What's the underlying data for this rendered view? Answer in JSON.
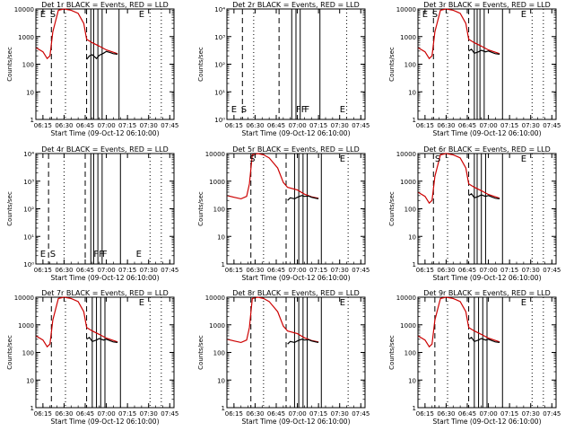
{
  "figure": {
    "background": "#ffffff",
    "event_color": "#000000",
    "lld_color": "#cc0000"
  },
  "shared": {
    "x_tick_labels": [
      "06:15",
      "06:30",
      "06:45",
      "07:00",
      "07:15",
      "07:30",
      "07:45"
    ],
    "y_tick_labels_linear": [
      "1",
      "10",
      "100",
      "1000",
      "10000"
    ],
    "y_tick_labels_exp": [
      "10⁰",
      "10¹",
      "10²",
      "10³",
      "10⁴"
    ],
    "xlabel": "Start Time (09-Oct-12 06:10:00)",
    "ylabel": "Counts/sec"
  },
  "chart_data": [
    {
      "type": "line",
      "title": "Det 1r BLACK = Events, RED = LLD",
      "y_scale": "log",
      "ylim": [
        1,
        10000
      ],
      "xlim": [
        "06:10",
        "07:48"
      ],
      "y_tick_style": "linear",
      "markers": [
        {
          "label": "E",
          "x": "06:13"
        },
        {
          "label": "S",
          "x": "06:20"
        },
        {
          "label": "E",
          "x": "07:23"
        }
      ],
      "dashed_lines": [
        "06:21",
        "06:46"
      ],
      "dotted_lines": [
        "06:31",
        "07:31",
        "07:39"
      ],
      "solid_lines": [
        "06:49",
        "06:51",
        "06:54",
        "06:57",
        "07:09"
      ],
      "series": [
        {
          "name": "LLD",
          "color": "#cc0000",
          "x": [
            "06:10",
            "06:15",
            "06:18",
            "06:20",
            "06:22",
            "06:26",
            "06:30",
            "06:35",
            "06:40",
            "06:44",
            "06:46",
            "06:50",
            "06:55",
            "07:00",
            "07:05",
            "07:08"
          ],
          "values": [
            400,
            280,
            160,
            200,
            1500,
            9000,
            10000,
            9000,
            7000,
            3000,
            800,
            600,
            450,
            330,
            270,
            240
          ]
        },
        {
          "name": "Events",
          "color": "#000000",
          "x": [
            "06:46",
            "06:48",
            "06:50",
            "06:53",
            "06:55",
            "06:58",
            "07:00",
            "07:03",
            "07:05",
            "07:08"
          ],
          "values": [
            150,
            200,
            220,
            160,
            210,
            250,
            290,
            260,
            240,
            230
          ]
        }
      ]
    },
    {
      "type": "line",
      "title": "Det 2r BLACK = Events, RED = LLD",
      "y_scale": "log",
      "ylim": [
        1,
        10000
      ],
      "xlim": [
        "06:10",
        "07:48"
      ],
      "y_tick_style": "exp",
      "markers": [
        {
          "label": "E",
          "x": "06:13"
        },
        {
          "label": "S",
          "x": "06:20"
        },
        {
          "label": "FF",
          "x": "06:59"
        },
        {
          "label": "F",
          "x": "07:05"
        },
        {
          "label": "E",
          "x": "07:30"
        }
      ],
      "dashed_lines": [
        "06:21",
        "06:47"
      ],
      "dotted_lines": [
        "06:29",
        "07:35"
      ],
      "solid_lines": [
        "06:56",
        "06:59",
        "07:02",
        "07:16"
      ],
      "series": []
    },
    {
      "type": "line",
      "title": "Det 3r BLACK = Events, RED = LLD",
      "y_scale": "log",
      "ylim": [
        1,
        10000
      ],
      "xlim": [
        "06:10",
        "07:48"
      ],
      "y_tick_style": "linear",
      "markers": [
        {
          "label": "E",
          "x": "06:13"
        },
        {
          "label": "S",
          "x": "06:20"
        },
        {
          "label": "E",
          "x": "07:23"
        }
      ],
      "dashed_lines": [
        "06:21",
        "06:46"
      ],
      "dotted_lines": [
        "06:31",
        "07:31",
        "07:39"
      ],
      "solid_lines": [
        "06:50",
        "06:52",
        "06:54",
        "06:57",
        "07:10"
      ],
      "series": [
        {
          "name": "LLD",
          "color": "#cc0000",
          "x": [
            "06:10",
            "06:15",
            "06:18",
            "06:20",
            "06:22",
            "06:26",
            "06:30",
            "06:35",
            "06:40",
            "06:44",
            "06:46",
            "06:50",
            "06:55",
            "07:00",
            "07:05",
            "07:08"
          ],
          "values": [
            400,
            280,
            160,
            200,
            1500,
            9000,
            10000,
            9000,
            7000,
            3000,
            800,
            600,
            450,
            330,
            270,
            240
          ]
        },
        {
          "name": "Events",
          "color": "#000000",
          "x": [
            "06:46",
            "06:48",
            "06:50",
            "06:53",
            "06:55",
            "06:58",
            "07:00",
            "07:03",
            "07:05",
            "07:08"
          ],
          "values": [
            300,
            350,
            250,
            280,
            320,
            280,
            300,
            260,
            240,
            230
          ]
        }
      ]
    },
    {
      "type": "line",
      "title": "Det 4r BLACK = Events, RED = LLD",
      "y_scale": "log",
      "ylim": [
        1,
        10000
      ],
      "xlim": [
        "06:10",
        "07:48"
      ],
      "y_tick_style": "exp",
      "markers": [
        {
          "label": "E",
          "x": "06:13"
        },
        {
          "label": "S",
          "x": "06:20"
        },
        {
          "label": "FF",
          "x": "06:51"
        },
        {
          "label": "F",
          "x": "06:57"
        },
        {
          "label": "E",
          "x": "07:21"
        }
      ],
      "dashed_lines": [
        "06:19",
        "06:45"
      ],
      "dotted_lines": [
        "06:30",
        "07:31",
        "07:39"
      ],
      "solid_lines": [
        "06:49",
        "06:51",
        "06:54",
        "06:57",
        "07:10"
      ],
      "series": []
    },
    {
      "type": "line",
      "title": "Det 5r BLACK = Events, RED = LLD",
      "y_scale": "log",
      "ylim": [
        1,
        10000
      ],
      "xlim": [
        "06:10",
        "07:48"
      ],
      "y_tick_style": "linear",
      "markers": [
        {
          "label": "S",
          "x": "06:26"
        },
        {
          "label": "E",
          "x": "07:30"
        }
      ],
      "dashed_lines": [
        "06:27",
        "06:52"
      ],
      "dotted_lines": [
        "06:36",
        "07:36"
      ],
      "solid_lines": [
        "06:58",
        "07:01",
        "07:04",
        "07:07",
        "07:17"
      ],
      "series": [
        {
          "name": "LLD",
          "color": "#cc0000",
          "x": [
            "06:10",
            "06:15",
            "06:20",
            "06:24",
            "06:26",
            "06:28",
            "06:32",
            "06:36",
            "06:40",
            "06:46",
            "06:50",
            "06:53",
            "07:00",
            "07:05",
            "07:10",
            "07:15"
          ],
          "values": [
            300,
            260,
            230,
            280,
            800,
            9000,
            10000,
            9000,
            7000,
            3000,
            900,
            600,
            480,
            340,
            270,
            240
          ]
        },
        {
          "name": "Events",
          "color": "#000000",
          "x": [
            "06:53",
            "06:55",
            "06:58",
            "07:00",
            "07:03",
            "07:05",
            "07:08",
            "07:10",
            "07:13",
            "07:15"
          ],
          "values": [
            200,
            250,
            230,
            260,
            300,
            280,
            290,
            260,
            240,
            230
          ]
        }
      ]
    },
    {
      "type": "line",
      "title": "Det 6r BLACK = Events, RED = LLD",
      "y_scale": "log",
      "ylim": [
        1,
        10000
      ],
      "xlim": [
        "06:10",
        "07:48"
      ],
      "y_tick_style": "linear",
      "markers": [
        {
          "label": "S",
          "x": "06:22"
        },
        {
          "label": "E",
          "x": "07:23"
        }
      ],
      "dashed_lines": [
        "06:21",
        "06:46"
      ],
      "dotted_lines": [
        "06:31",
        "07:31",
        "07:39"
      ],
      "solid_lines": [
        "06:50",
        "06:52",
        "06:55",
        "06:58",
        "07:10"
      ],
      "series": [
        {
          "name": "LLD",
          "color": "#cc0000",
          "x": [
            "06:10",
            "06:15",
            "06:18",
            "06:20",
            "06:22",
            "06:26",
            "06:30",
            "06:35",
            "06:40",
            "06:44",
            "06:46",
            "06:50",
            "06:55",
            "07:00",
            "07:05",
            "07:08"
          ],
          "values": [
            400,
            280,
            160,
            200,
            1500,
            9000,
            10000,
            9000,
            7000,
            3000,
            800,
            600,
            450,
            330,
            270,
            240
          ]
        },
        {
          "name": "Events",
          "color": "#000000",
          "x": [
            "06:46",
            "06:48",
            "06:50",
            "06:53",
            "06:55",
            "06:58",
            "07:00",
            "07:03",
            "07:05",
            "07:08"
          ],
          "values": [
            300,
            350,
            250,
            280,
            320,
            280,
            300,
            260,
            240,
            230
          ]
        }
      ]
    },
    {
      "type": "line",
      "title": "Det 7r BLACK = Events, RED = LLD",
      "y_scale": "log",
      "ylim": [
        1,
        10000
      ],
      "xlim": [
        "06:10",
        "07:48"
      ],
      "y_tick_style": "linear",
      "markers": [
        {
          "label": "E",
          "x": "07:23"
        }
      ],
      "dashed_lines": [
        "06:21",
        "06:46"
      ],
      "dotted_lines": [
        "06:31",
        "07:31",
        "07:39"
      ],
      "solid_lines": [
        "06:50",
        "06:53",
        "06:56",
        "06:59",
        "07:10"
      ],
      "series": [
        {
          "name": "LLD",
          "color": "#cc0000",
          "x": [
            "06:10",
            "06:15",
            "06:18",
            "06:20",
            "06:22",
            "06:26",
            "06:30",
            "06:35",
            "06:40",
            "06:44",
            "06:46",
            "06:50",
            "06:55",
            "07:00",
            "07:05",
            "07:08"
          ],
          "values": [
            400,
            280,
            160,
            200,
            1500,
            9000,
            10000,
            9000,
            7000,
            3000,
            800,
            600,
            450,
            330,
            270,
            240
          ]
        },
        {
          "name": "Events",
          "color": "#000000",
          "x": [
            "06:46",
            "06:48",
            "06:50",
            "06:53",
            "06:55",
            "06:58",
            "07:00",
            "07:03",
            "07:05",
            "07:08"
          ],
          "values": [
            300,
            350,
            250,
            280,
            320,
            280,
            300,
            260,
            240,
            230
          ]
        }
      ]
    },
    {
      "type": "line",
      "title": "Det 8r BLACK = Events, RED = LLD",
      "y_scale": "log",
      "ylim": [
        1,
        10000
      ],
      "xlim": [
        "06:10",
        "07:48"
      ],
      "y_tick_style": "linear",
      "markers": [
        {
          "label": "E",
          "x": "07:30"
        }
      ],
      "dashed_lines": [
        "06:27",
        "06:52"
      ],
      "dotted_lines": [
        "06:36",
        "07:36"
      ],
      "solid_lines": [
        "06:58",
        "07:01",
        "07:04",
        "07:07",
        "07:17"
      ],
      "series": [
        {
          "name": "LLD",
          "color": "#cc0000",
          "x": [
            "06:10",
            "06:15",
            "06:20",
            "06:24",
            "06:26",
            "06:28",
            "06:32",
            "06:36",
            "06:40",
            "06:46",
            "06:50",
            "06:53",
            "07:00",
            "07:05",
            "07:10",
            "07:15"
          ],
          "values": [
            300,
            260,
            230,
            280,
            800,
            9000,
            10000,
            9000,
            7000,
            3000,
            900,
            600,
            480,
            340,
            270,
            240
          ]
        },
        {
          "name": "Events",
          "color": "#000000",
          "x": [
            "06:53",
            "06:55",
            "06:58",
            "07:00",
            "07:03",
            "07:05",
            "07:08",
            "07:10",
            "07:13",
            "07:15"
          ],
          "values": [
            200,
            250,
            230,
            260,
            300,
            280,
            290,
            260,
            240,
            230
          ]
        }
      ]
    },
    {
      "type": "line",
      "title": "Det 9r BLACK = Events, RED = LLD",
      "y_scale": "log",
      "ylim": [
        1,
        10000
      ],
      "xlim": [
        "06:10",
        "07:48"
      ],
      "y_tick_style": "linear",
      "markers": [
        {
          "label": "E",
          "x": "07:23"
        }
      ],
      "dashed_lines": [
        "06:22",
        "06:46"
      ],
      "dotted_lines": [
        "06:31",
        "07:31",
        "07:39"
      ],
      "solid_lines": [
        "06:50",
        "06:53",
        "06:56",
        "06:59",
        "07:10"
      ],
      "series": [
        {
          "name": "LLD",
          "color": "#cc0000",
          "x": [
            "06:10",
            "06:15",
            "06:18",
            "06:20",
            "06:22",
            "06:26",
            "06:30",
            "06:35",
            "06:40",
            "06:44",
            "06:46",
            "06:50",
            "06:55",
            "07:00",
            "07:05",
            "07:08"
          ],
          "values": [
            400,
            280,
            160,
            200,
            1500,
            9000,
            10000,
            9000,
            7000,
            3000,
            800,
            600,
            450,
            330,
            270,
            240
          ]
        },
        {
          "name": "Events",
          "color": "#000000",
          "x": [
            "06:46",
            "06:48",
            "06:50",
            "06:53",
            "06:55",
            "06:58",
            "07:00",
            "07:03",
            "07:05",
            "07:08"
          ],
          "values": [
            300,
            350,
            250,
            280,
            320,
            280,
            300,
            260,
            240,
            230
          ]
        }
      ]
    }
  ]
}
